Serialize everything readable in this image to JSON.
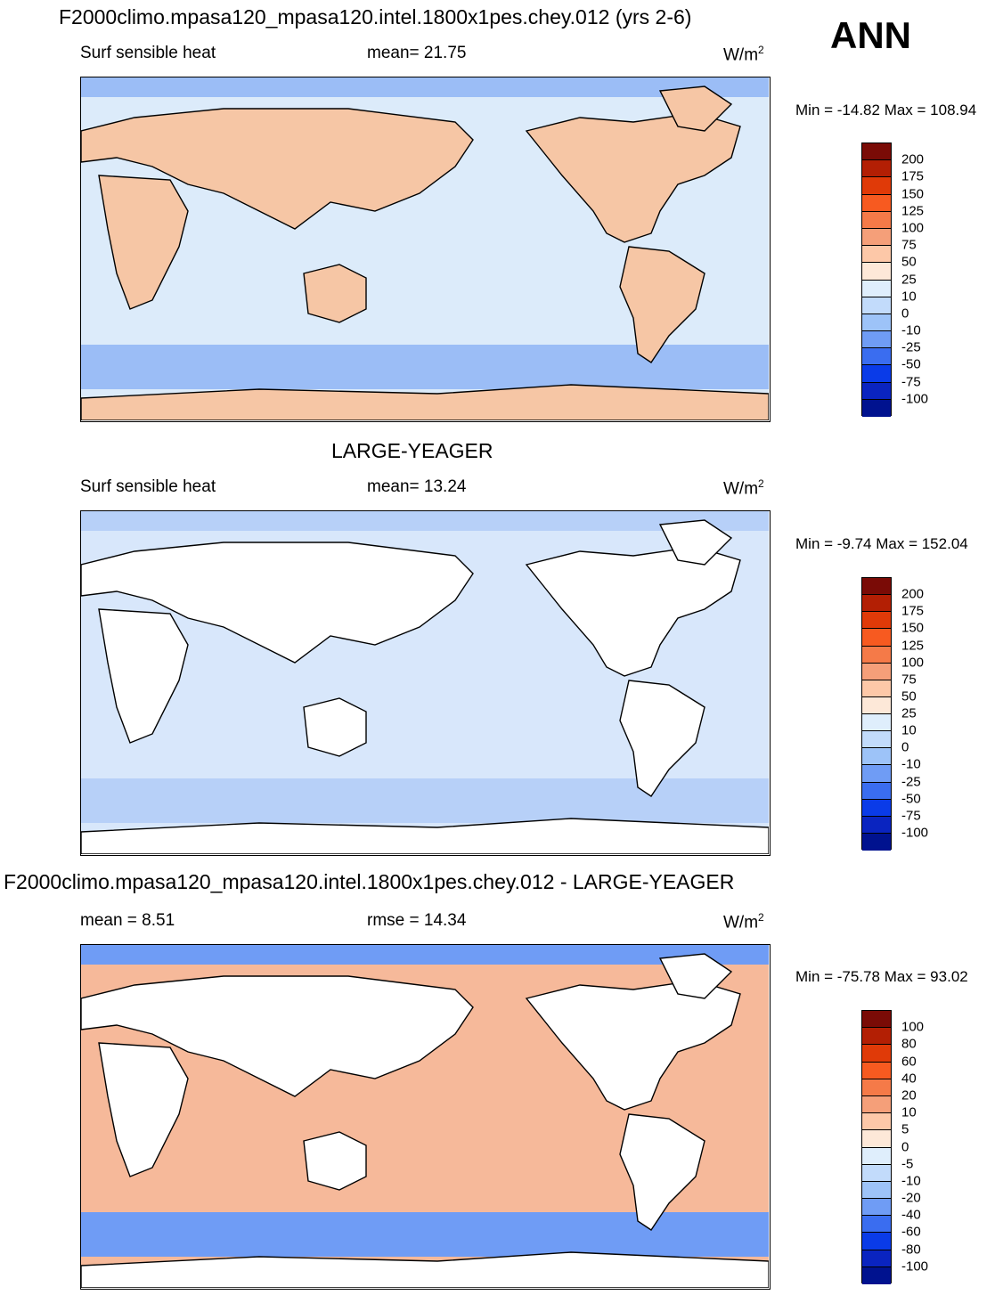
{
  "header": {
    "title": "F2000climo.mpasa120_mpasa120.intel.1800x1pes.chey.012 (yrs 2-6)",
    "season": "ANN"
  },
  "panels": [
    {
      "variable": "Surf sensible heat",
      "stat": "mean=  21.75",
      "units_base": "W/m",
      "units_exp": "2",
      "minmax": "Min = -14.82 Max = 108.94",
      "colorbar": {
        "labels": [
          "200",
          "175",
          "150",
          "125",
          "100",
          "75",
          "50",
          "25",
          "10",
          "0",
          "-10",
          "-25",
          "-50",
          "-75",
          "-100"
        ],
        "colors": [
          "#7a0b06",
          "#b31f04",
          "#e03a08",
          "#f75a20",
          "#f57a48",
          "#f59f79",
          "#fdc8a8",
          "#fde8d8",
          "#dfeefc",
          "#c2dbfb",
          "#9dc3f8",
          "#6f9cf5",
          "#3a6df0",
          "#0a3be8",
          "#0a24c0",
          "#00128f"
        ]
      },
      "regions": {
        "ocean": "#dcebfa",
        "land": "#f6c6a5",
        "polar": "#9bbdf6"
      }
    },
    {
      "title": "LARGE-YEAGER",
      "variable": "Surf sensible heat",
      "stat": "mean=  13.24",
      "units_base": "W/m",
      "units_exp": "2",
      "minmax": "Min =  -9.74 Max = 152.04",
      "colorbar": {
        "labels": [
          "200",
          "175",
          "150",
          "125",
          "100",
          "75",
          "50",
          "25",
          "10",
          "0",
          "-10",
          "-25",
          "-50",
          "-75",
          "-100"
        ],
        "colors": [
          "#7a0b06",
          "#b31f04",
          "#e03a08",
          "#f75a20",
          "#f57a48",
          "#f59f79",
          "#fdc8a8",
          "#fde8d8",
          "#dfeefc",
          "#c2dbfb",
          "#9dc3f8",
          "#6f9cf5",
          "#3a6df0",
          "#0a3be8",
          "#0a24c0",
          "#00128f"
        ]
      },
      "regions": {
        "ocean": "#d8e7fb",
        "land": "#ffffff",
        "polar": "#b7d0f8"
      }
    },
    {
      "title": "F2000climo.mpasa120_mpasa120.intel.1800x1pes.chey.012 - LARGE-YEAGER",
      "stat_left": "mean =   8.51",
      "stat": "rmse =  14.34",
      "units_base": "W/m",
      "units_exp": "2",
      "minmax": "Min = -75.78 Max =  93.02",
      "colorbar": {
        "labels": [
          "100",
          "80",
          "60",
          "40",
          "20",
          "10",
          "5",
          "0",
          "-5",
          "-10",
          "-20",
          "-40",
          "-60",
          "-80",
          "-100"
        ],
        "colors": [
          "#7a0b06",
          "#b31f04",
          "#e03a08",
          "#f75a20",
          "#f57a48",
          "#f59f79",
          "#fdc8a8",
          "#fde8d8",
          "#dfeefc",
          "#c2dbfb",
          "#9dc3f8",
          "#6f9cf5",
          "#3a6df0",
          "#0a3be8",
          "#0a24c0",
          "#00128f"
        ]
      },
      "regions": {
        "ocean": "#f6b99a",
        "land": "#ffffff",
        "polar": "#6f9cf5"
      }
    }
  ]
}
